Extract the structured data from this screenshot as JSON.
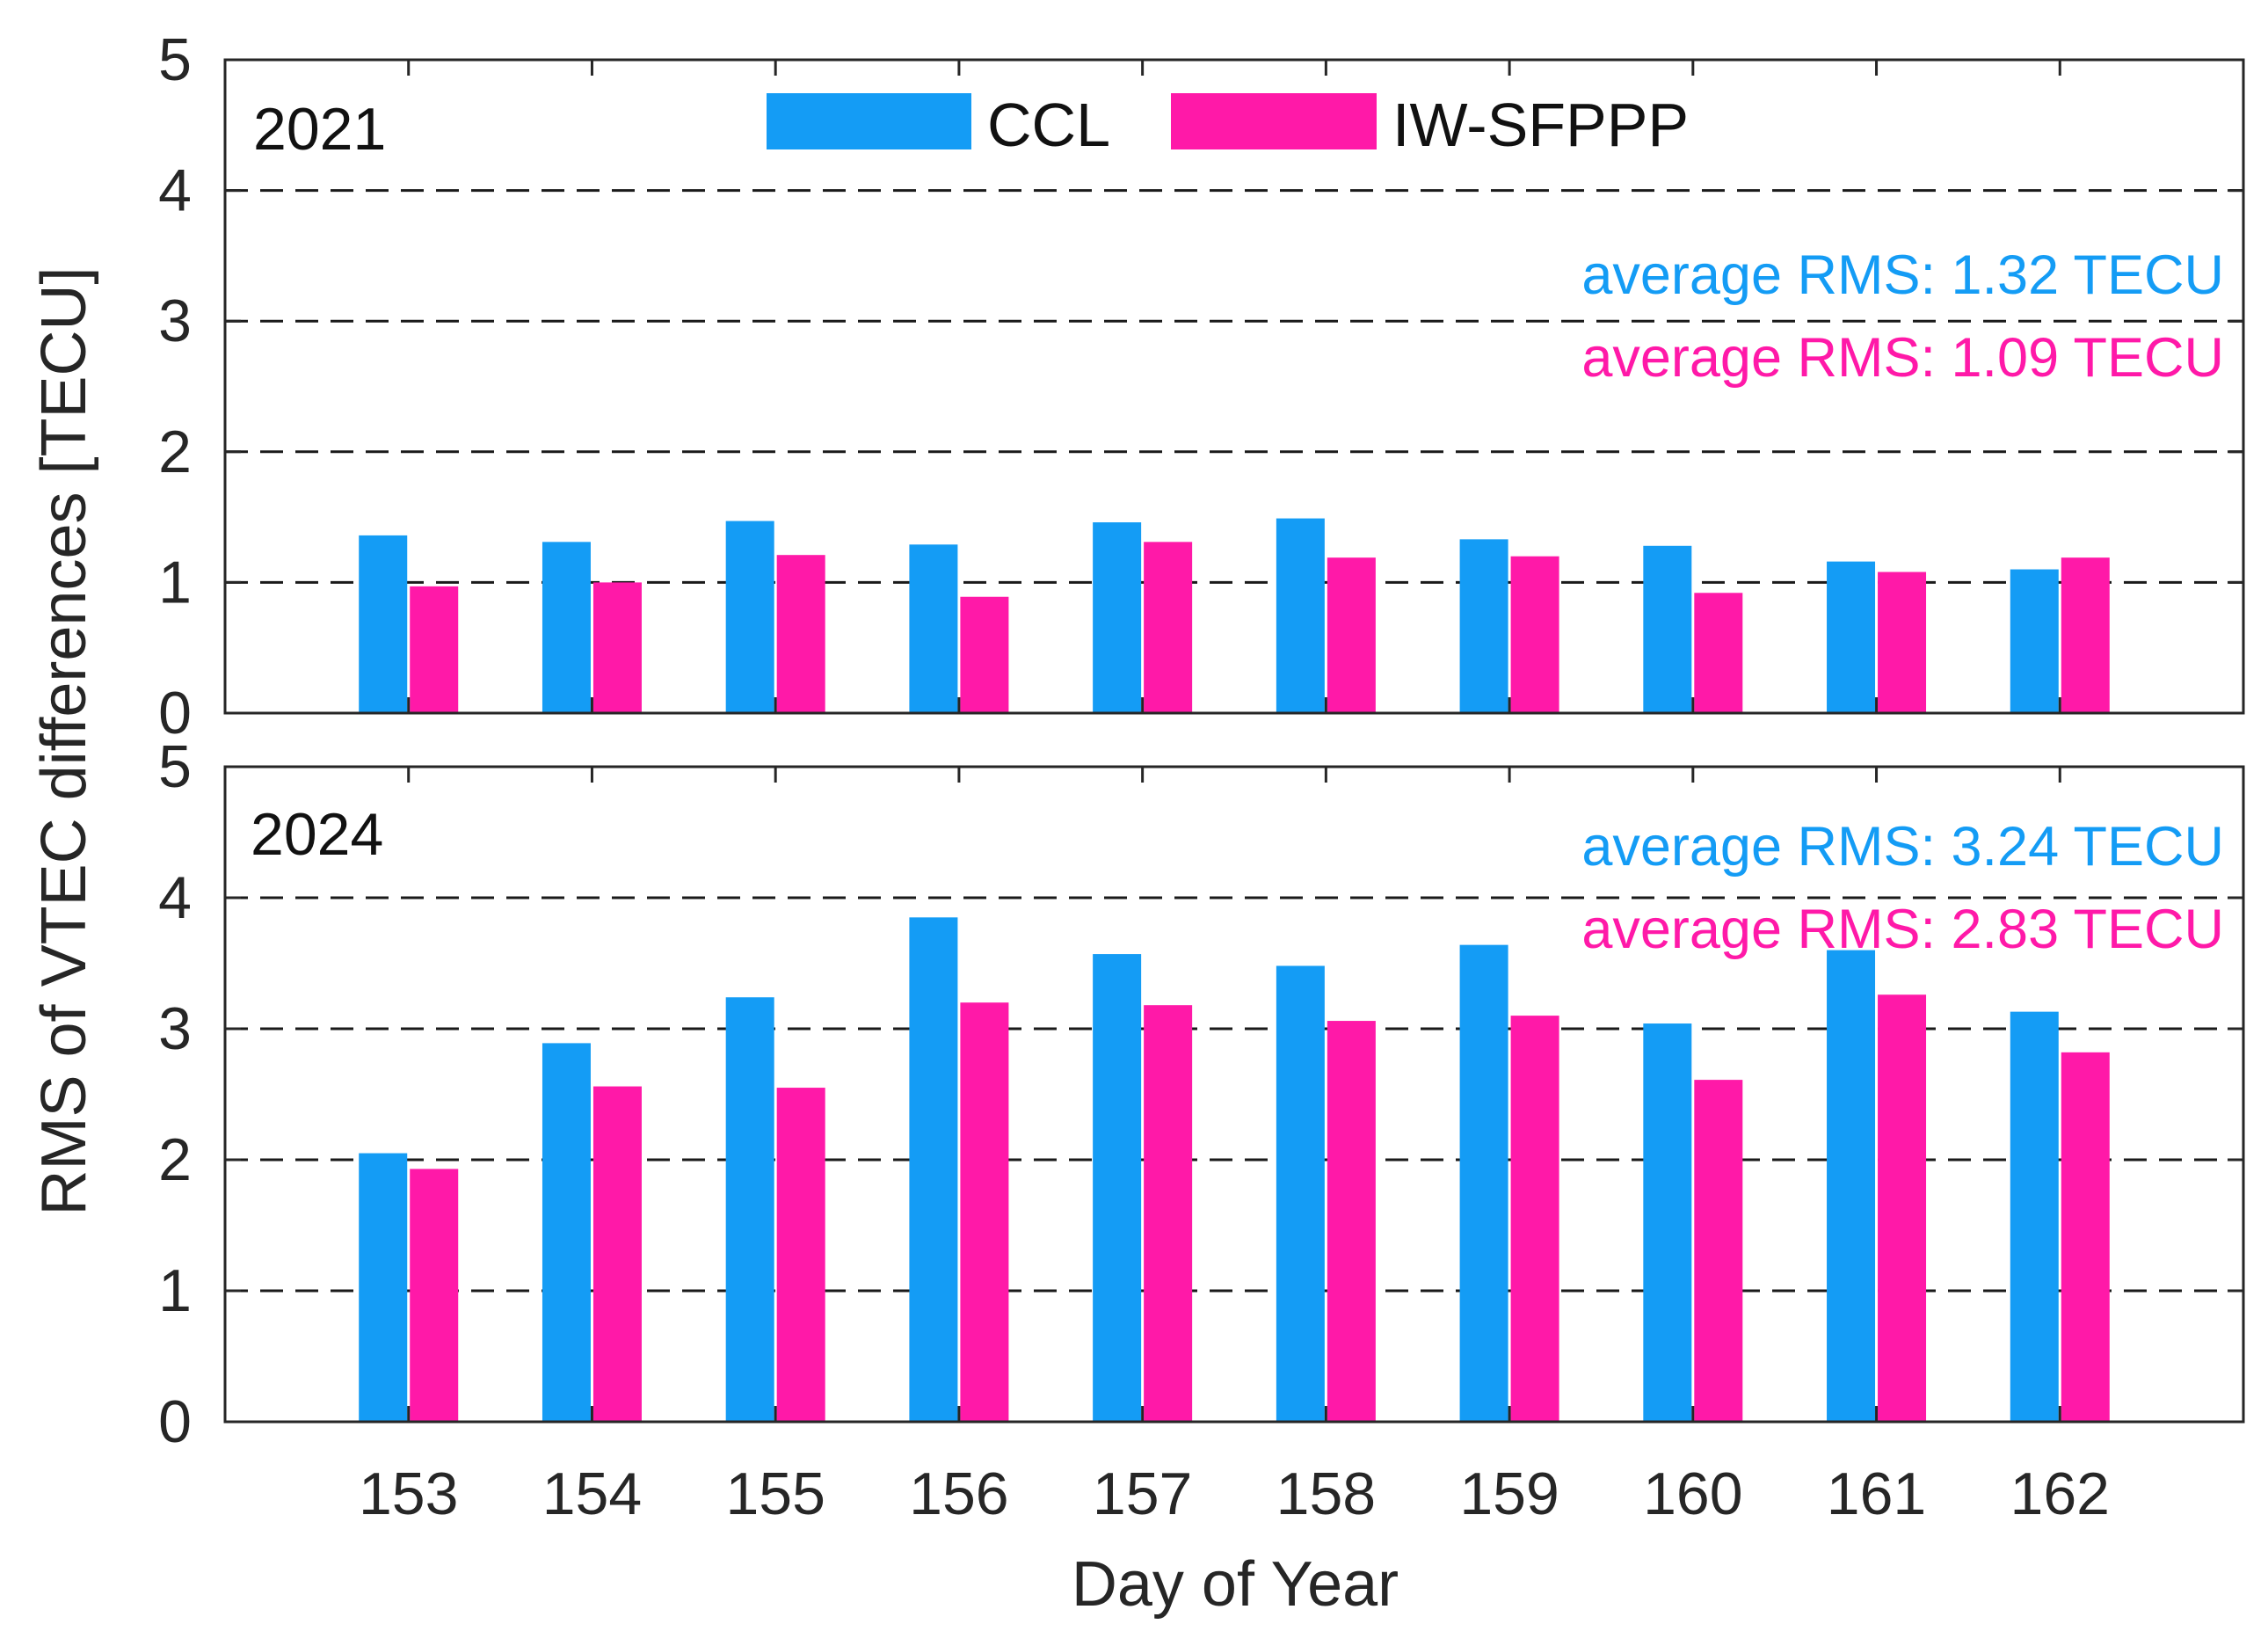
{
  "chart_data": {
    "type": "bar",
    "xlabel": "Day of Year",
    "ylabel": "RMS of VTEC differences [TECU]",
    "categories": [
      "153",
      "154",
      "155",
      "156",
      "157",
      "158",
      "159",
      "160",
      "161",
      "162"
    ],
    "legend": {
      "position": "top-center",
      "entries": [
        {
          "name": "CCL",
          "color": "#149CF5"
        },
        {
          "name": "IW-SFPPP",
          "color": "#FF19A8"
        }
      ]
    },
    "panels": [
      {
        "label": "2021",
        "ylim": [
          0,
          5
        ],
        "yticks": [
          "0",
          "1",
          "2",
          "3",
          "4",
          "5"
        ],
        "grid": "dashed horizontal",
        "series": [
          {
            "name": "CCL",
            "values": [
              1.36,
              1.31,
              1.47,
              1.29,
              1.46,
              1.49,
              1.33,
              1.28,
              1.16,
              1.1
            ]
          },
          {
            "name": "IW-SFPPP",
            "values": [
              0.97,
              1.0,
              1.21,
              0.89,
              1.31,
              1.19,
              1.2,
              0.92,
              1.08,
              1.19
            ]
          }
        ],
        "averages": [
          {
            "text": "average RMS: 1.32 TECU",
            "color": "#149CF5"
          },
          {
            "text": "average RMS: 1.09 TECU",
            "color": "#FF19A8"
          }
        ]
      },
      {
        "label": "2024",
        "ylim": [
          0,
          5
        ],
        "yticks": [
          "0",
          "1",
          "2",
          "3",
          "4",
          "5"
        ],
        "grid": "dashed horizontal",
        "series": [
          {
            "name": "CCL",
            "values": [
              2.05,
              2.89,
              3.24,
              3.85,
              3.57,
              3.48,
              3.64,
              3.04,
              3.6,
              3.13
            ]
          },
          {
            "name": "IW-SFPPP",
            "values": [
              1.93,
              2.56,
              2.55,
              3.2,
              3.18,
              3.06,
              3.1,
              2.61,
              3.26,
              2.82
            ]
          }
        ],
        "averages": [
          {
            "text": "average RMS: 3.24 TECU",
            "color": "#149CF5"
          },
          {
            "text": "average RMS: 2.83 TECU",
            "color": "#FF19A8"
          }
        ]
      }
    ]
  }
}
